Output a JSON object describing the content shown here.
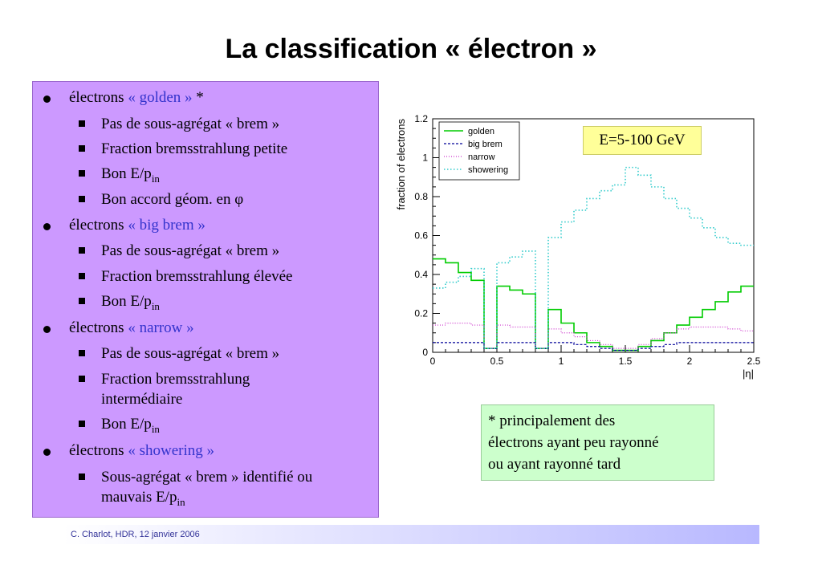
{
  "title": "La classification « électron »",
  "bullets": [
    {
      "prefix": "électrons ",
      "highlight": "« golden »",
      "suffix": " *",
      "items": [
        "Pas de sous-agrégat « brem »",
        "Fraction bremsstrahlung petite",
        "Bon E/p",
        "Bon accord géom. en φ"
      ]
    },
    {
      "prefix": "électrons ",
      "highlight": "« big brem »",
      "suffix": "",
      "items": [
        "Pas de sous-agrégat « brem »",
        "Fraction bremsstrahlung élevée",
        "Bon E/p"
      ]
    },
    {
      "prefix": "électrons ",
      "highlight": "« narrow »",
      "suffix": "",
      "items": [
        "Pas de sous-agrégat « brem »",
        "Fraction bremsstrahlung",
        "intermédiaire",
        "Bon E/p"
      ]
    },
    {
      "prefix": "électrons ",
      "highlight": "« showering »",
      "suffix": "",
      "items": [
        "Sous-agrégat « brem » identifié ou",
        "mauvais E/p"
      ]
    }
  ],
  "sub_in": "in",
  "energy_label": "E=5-100 GeV",
  "note": [
    "* principalement des",
    "électrons ayant peu rayonné",
    "ou ayant rayonné tard"
  ],
  "footer": "C. Charlot, HDR, 12 janvier 2006",
  "colors": {
    "golden": "#00cc00",
    "big_brem": "#000099",
    "narrow": "#cc33cc",
    "showering": "#33cccc",
    "panel": "#cc99ff",
    "highlight_text": "#3333cc"
  },
  "chart_data": {
    "type": "line",
    "xlabel": "|η|",
    "ylabel": "fraction of electrons",
    "xlim": [
      0,
      2.5
    ],
    "ylim": [
      0,
      1.2
    ],
    "xticks": [
      "0",
      "0.5",
      "1",
      "1.5",
      "2",
      "2.5"
    ],
    "yticks": [
      "0",
      "0.2",
      "0.4",
      "0.6",
      "0.8",
      "1",
      "1.2"
    ],
    "legend_position": "top-left",
    "x": [
      0.05,
      0.15,
      0.25,
      0.35,
      0.45,
      0.55,
      0.65,
      0.75,
      0.85,
      0.95,
      1.05,
      1.15,
      1.25,
      1.35,
      1.45,
      1.55,
      1.65,
      1.75,
      1.85,
      1.95,
      2.05,
      2.15,
      2.25,
      2.35,
      2.45
    ],
    "series": [
      {
        "name": "golden",
        "values": [
          0.48,
          0.46,
          0.41,
          0.37,
          0.02,
          0.34,
          0.32,
          0.3,
          0.02,
          0.22,
          0.15,
          0.1,
          0.05,
          0.03,
          0.01,
          0.01,
          0.03,
          0.06,
          0.1,
          0.14,
          0.18,
          0.22,
          0.26,
          0.31,
          0.34
        ]
      },
      {
        "name": "big brem",
        "values": [
          0.05,
          0.05,
          0.05,
          0.05,
          0.02,
          0.05,
          0.05,
          0.05,
          0.02,
          0.05,
          0.05,
          0.04,
          0.03,
          0.02,
          0.01,
          0.01,
          0.02,
          0.03,
          0.04,
          0.05,
          0.05,
          0.05,
          0.05,
          0.05,
          0.05
        ]
      },
      {
        "name": "narrow",
        "values": [
          0.14,
          0.15,
          0.15,
          0.14,
          0.02,
          0.14,
          0.13,
          0.13,
          0.02,
          0.12,
          0.1,
          0.08,
          0.06,
          0.04,
          0.02,
          0.02,
          0.04,
          0.07,
          0.1,
          0.12,
          0.13,
          0.13,
          0.13,
          0.12,
          0.11
        ]
      },
      {
        "name": "showering",
        "values": [
          0.33,
          0.36,
          0.39,
          0.43,
          0.02,
          0.46,
          0.49,
          0.52,
          0.02,
          0.59,
          0.67,
          0.73,
          0.79,
          0.83,
          0.86,
          0.95,
          0.91,
          0.85,
          0.79,
          0.74,
          0.69,
          0.64,
          0.59,
          0.56,
          0.55
        ]
      }
    ]
  }
}
